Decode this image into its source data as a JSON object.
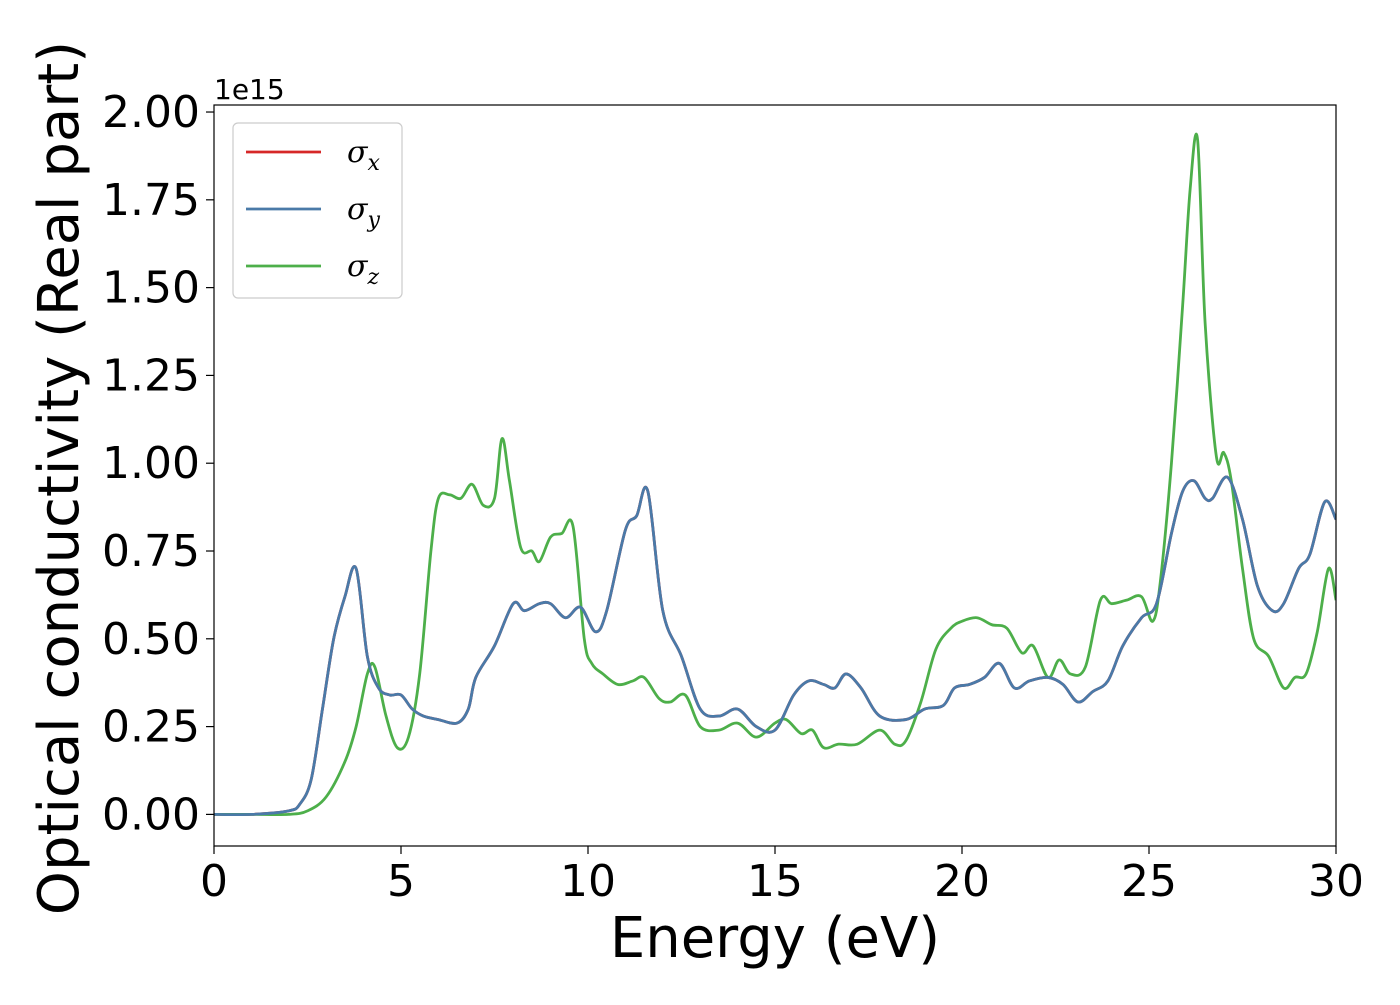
{
  "chart_data": {
    "type": "line",
    "xlabel": "Energy (eV)",
    "ylabel": "Optical conductivity (Real part)",
    "y_multiplier_label": "1e15",
    "xlim": [
      0,
      30
    ],
    "ylim": [
      -0.09,
      2.02
    ],
    "x_ticks": [
      "0",
      "5",
      "10",
      "15",
      "20",
      "25",
      "30"
    ],
    "y_ticks": [
      "0.00",
      "0.25",
      "0.50",
      "0.75",
      "1.00",
      "1.25",
      "1.50",
      "1.75",
      "2.00"
    ],
    "grid": false,
    "legend_position": "top-left",
    "series": [
      {
        "name": "σx",
        "name_base": "σ",
        "name_sub": "x",
        "color": "#d62728",
        "note_hidden_under": "σy",
        "x": [
          0,
          1,
          2,
          2.3,
          2.6,
          2.9,
          3.2,
          3.5,
          3.8,
          4.1,
          4.4,
          4.7,
          5.0,
          5.3,
          5.6,
          6.0,
          6.5,
          6.8,
          7.0,
          7.5,
          8.0,
          8.3,
          8.7,
          9.0,
          9.4,
          9.8,
          10.2,
          10.5,
          11.0,
          11.3,
          11.6,
          12.0,
          12.5,
          13.0,
          13.5,
          14.0,
          14.5,
          15.0,
          15.5,
          15.9,
          16.3,
          16.6,
          16.9,
          17.3,
          17.8,
          18.5,
          19.0,
          19.5,
          19.8,
          20.2,
          20.6,
          21.0,
          21.4,
          21.8,
          22.3,
          22.7,
          23.1,
          23.5,
          23.9,
          24.3,
          24.8,
          25.2,
          25.6,
          25.9,
          26.2,
          26.5,
          26.7,
          27.1,
          27.5,
          27.9,
          28.3,
          28.6,
          29.0,
          29.3,
          29.7,
          30.0
        ],
        "y": [
          0.0,
          0.0,
          0.01,
          0.03,
          0.1,
          0.3,
          0.5,
          0.62,
          0.7,
          0.45,
          0.36,
          0.34,
          0.34,
          0.3,
          0.28,
          0.27,
          0.26,
          0.3,
          0.39,
          0.48,
          0.6,
          0.58,
          0.6,
          0.6,
          0.56,
          0.59,
          0.52,
          0.58,
          0.81,
          0.85,
          0.92,
          0.58,
          0.45,
          0.3,
          0.28,
          0.3,
          0.25,
          0.24,
          0.34,
          0.38,
          0.37,
          0.36,
          0.4,
          0.36,
          0.28,
          0.27,
          0.3,
          0.31,
          0.36,
          0.37,
          0.39,
          0.43,
          0.36,
          0.38,
          0.39,
          0.37,
          0.32,
          0.35,
          0.38,
          0.48,
          0.56,
          0.6,
          0.8,
          0.92,
          0.95,
          0.9,
          0.9,
          0.96,
          0.84,
          0.65,
          0.58,
          0.6,
          0.7,
          0.74,
          0.89,
          0.84
        ]
      },
      {
        "name": "σy",
        "name_base": "σ",
        "name_sub": "y",
        "color": "#4a7aa8",
        "x": [
          0,
          1,
          2,
          2.3,
          2.6,
          2.9,
          3.2,
          3.5,
          3.8,
          4.1,
          4.4,
          4.7,
          5.0,
          5.3,
          5.6,
          6.0,
          6.5,
          6.8,
          7.0,
          7.5,
          8.0,
          8.3,
          8.7,
          9.0,
          9.4,
          9.8,
          10.2,
          10.5,
          11.0,
          11.3,
          11.6,
          12.0,
          12.5,
          13.0,
          13.5,
          14.0,
          14.5,
          15.0,
          15.5,
          15.9,
          16.3,
          16.6,
          16.9,
          17.3,
          17.8,
          18.5,
          19.0,
          19.5,
          19.8,
          20.2,
          20.6,
          21.0,
          21.4,
          21.8,
          22.3,
          22.7,
          23.1,
          23.5,
          23.9,
          24.3,
          24.8,
          25.2,
          25.6,
          25.9,
          26.2,
          26.5,
          26.7,
          27.1,
          27.5,
          27.9,
          28.3,
          28.6,
          29.0,
          29.3,
          29.7,
          30.0
        ],
        "y": [
          0.0,
          0.0,
          0.01,
          0.03,
          0.1,
          0.3,
          0.5,
          0.62,
          0.7,
          0.45,
          0.36,
          0.34,
          0.34,
          0.3,
          0.28,
          0.27,
          0.26,
          0.3,
          0.39,
          0.48,
          0.6,
          0.58,
          0.6,
          0.6,
          0.56,
          0.59,
          0.52,
          0.58,
          0.81,
          0.85,
          0.92,
          0.58,
          0.45,
          0.3,
          0.28,
          0.3,
          0.25,
          0.24,
          0.34,
          0.38,
          0.37,
          0.36,
          0.4,
          0.36,
          0.28,
          0.27,
          0.3,
          0.31,
          0.36,
          0.37,
          0.39,
          0.43,
          0.36,
          0.38,
          0.39,
          0.37,
          0.32,
          0.35,
          0.38,
          0.48,
          0.56,
          0.6,
          0.8,
          0.92,
          0.95,
          0.9,
          0.9,
          0.96,
          0.84,
          0.65,
          0.58,
          0.6,
          0.7,
          0.74,
          0.89,
          0.84
        ]
      },
      {
        "name": "σz",
        "name_base": "σ",
        "name_sub": "z",
        "color": "#4daf4a",
        "x": [
          0,
          1,
          2,
          2.5,
          3.0,
          3.5,
          3.8,
          4.1,
          4.3,
          4.6,
          4.9,
          5.2,
          5.5,
          5.8,
          6.0,
          6.3,
          6.6,
          6.9,
          7.2,
          7.5,
          7.7,
          7.9,
          8.2,
          8.5,
          8.7,
          9.0,
          9.3,
          9.6,
          9.9,
          10.1,
          10.4,
          10.8,
          11.2,
          11.5,
          11.9,
          12.2,
          12.6,
          13.0,
          13.5,
          14.0,
          14.5,
          15.0,
          15.3,
          15.7,
          16.0,
          16.3,
          16.7,
          17.2,
          17.8,
          18.2,
          18.5,
          18.9,
          19.3,
          19.7,
          20.0,
          20.4,
          20.8,
          21.2,
          21.6,
          21.9,
          22.3,
          22.6,
          22.9,
          23.3,
          23.7,
          24.0,
          24.4,
          24.8,
          25.1,
          25.3,
          25.6,
          25.9,
          26.1,
          26.3,
          26.5,
          26.8,
          27.0,
          27.2,
          27.5,
          27.8,
          28.2,
          28.6,
          28.9,
          29.2,
          29.5,
          29.8,
          30.0
        ],
        "y": [
          0.0,
          0.0,
          0.0,
          0.01,
          0.05,
          0.15,
          0.25,
          0.4,
          0.42,
          0.28,
          0.19,
          0.22,
          0.4,
          0.75,
          0.9,
          0.91,
          0.9,
          0.94,
          0.88,
          0.9,
          1.07,
          0.95,
          0.76,
          0.75,
          0.72,
          0.79,
          0.8,
          0.82,
          0.5,
          0.43,
          0.4,
          0.37,
          0.38,
          0.39,
          0.33,
          0.32,
          0.34,
          0.25,
          0.24,
          0.26,
          0.22,
          0.26,
          0.27,
          0.23,
          0.24,
          0.19,
          0.2,
          0.2,
          0.24,
          0.2,
          0.21,
          0.32,
          0.47,
          0.53,
          0.55,
          0.56,
          0.54,
          0.53,
          0.46,
          0.48,
          0.39,
          0.44,
          0.4,
          0.42,
          0.61,
          0.6,
          0.61,
          0.62,
          0.55,
          0.66,
          1.0,
          1.45,
          1.78,
          1.92,
          1.4,
          1.02,
          1.03,
          0.95,
          0.7,
          0.5,
          0.45,
          0.36,
          0.39,
          0.4,
          0.52,
          0.7,
          0.61
        ]
      }
    ]
  }
}
